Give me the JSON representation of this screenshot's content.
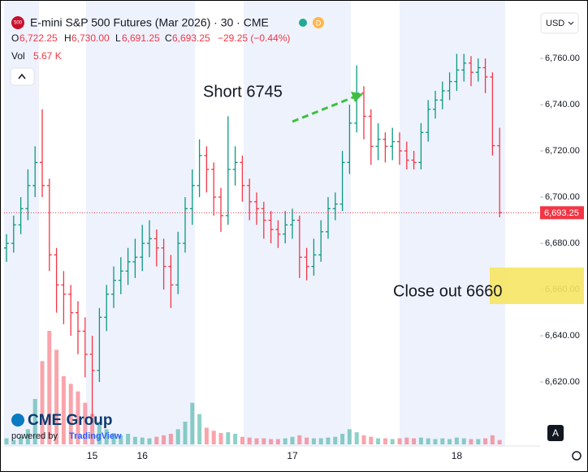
{
  "header": {
    "symbol_badge": "500",
    "title": "E-mini S&P 500 Futures (Mar 2026) · 30 · CME",
    "badge_d": "D",
    "open_label": "O",
    "open": "6,722.25",
    "high_label": "H",
    "high": "6,730.00",
    "low_label": "L",
    "low": "6,691.25",
    "close_label": "C",
    "close": "6,693.25",
    "change": "−29.25 (−0.44%)",
    "vol_label": "Vol",
    "vol_value": "5.67 K",
    "currency": "USD",
    "brand": "CME Group",
    "powered_by": "powered by",
    "powered_name": "TradingView",
    "auto_button": "A"
  },
  "chart_data": {
    "type": "ohlc",
    "up_color": "#089981",
    "down_color": "#f23645",
    "ylim": [
      6592.3,
      6785.3
    ],
    "yticks": [
      {
        "value": 6620,
        "label": "6,620.00"
      },
      {
        "value": 6640,
        "label": "6,640.00"
      },
      {
        "value": 6660,
        "label": "6,660.00"
      },
      {
        "value": 6680,
        "label": "6,680.00"
      },
      {
        "value": 6700,
        "label": "6,700.00"
      },
      {
        "value": 6720,
        "label": "6,720.00"
      },
      {
        "value": 6740,
        "label": "6,740.00"
      },
      {
        "value": 6760,
        "label": "6,760.00"
      }
    ],
    "categories": [
      null,
      null,
      null,
      null,
      null,
      null,
      null,
      null,
      null,
      null,
      null,
      null,
      "15",
      null,
      null,
      null,
      null,
      null,
      null,
      "16",
      null,
      null,
      null,
      null,
      null,
      null,
      null,
      null,
      null,
      null,
      null,
      null,
      null,
      null,
      null,
      null,
      null,
      null,
      null,
      null,
      "17",
      null,
      null,
      null,
      null,
      null,
      null,
      null,
      null,
      null,
      null,
      null,
      null,
      null,
      null,
      null,
      null,
      null,
      null,
      null,
      null,
      null,
      null,
      "18",
      null,
      null,
      null,
      null,
      null,
      null
    ],
    "open": [
      6678,
      6680,
      6688,
      6695,
      6705,
      6715,
      6705,
      6675,
      6662,
      6658,
      6650,
      6642,
      6632,
      6625,
      6648,
      6658,
      6664,
      6668,
      6672,
      6674,
      6680,
      6682,
      6678,
      6670,
      6662,
      6680,
      6695,
      6705,
      6718,
      6712,
      6700,
      6692,
      6712,
      6715,
      6705,
      6698,
      6695,
      6690,
      6686,
      6684,
      6688,
      6690,
      6674,
      6670,
      6675,
      6685,
      6695,
      6697,
      6715,
      6732,
      6745,
      6735,
      6722,
      6725,
      6722,
      6724,
      6720,
      6716,
      6715,
      6728,
      6738,
      6742,
      6746,
      6750,
      6755,
      6758,
      6754,
      6756,
      6752,
      6722.25
    ],
    "high": [
      6684,
      6692,
      6700,
      6712,
      6722,
      6738,
      6708,
      6678,
      6668,
      6662,
      6655,
      6648,
      6640,
      6652,
      6662,
      6670,
      6674,
      6678,
      6682,
      6688,
      6690,
      6686,
      6682,
      6675,
      6685,
      6700,
      6712,
      6725,
      6722,
      6715,
      6704,
      6735,
      6722,
      6718,
      6708,
      6702,
      6698,
      6694,
      6690,
      6694,
      6695,
      6692,
      6678,
      6682,
      6690,
      6700,
      6702,
      6720,
      6740,
      6757,
      6748,
      6738,
      6732,
      6728,
      6730,
      6728,
      6724,
      6720,
      6732,
      6742,
      6746,
      6750,
      6754,
      6762,
      6762,
      6761,
      6760,
      6760,
      6754,
      6730
    ],
    "low": [
      6672,
      6676,
      6684,
      6690,
      6700,
      6700,
      6668,
      6650,
      6645,
      6640,
      6632,
      6622,
      6605,
      6620,
      6642,
      6652,
      6658,
      6662,
      6665,
      6668,
      6674,
      6670,
      6660,
      6652,
      6658,
      6676,
      6688,
      6700,
      6702,
      6692,
      6685,
      6688,
      6705,
      6698,
      6690,
      6688,
      6682,
      6680,
      6678,
      6680,
      6682,
      6665,
      6664,
      6666,
      6672,
      6682,
      6690,
      6694,
      6710,
      6728,
      6725,
      6714,
      6716,
      6715,
      6716,
      6714,
      6712,
      6712,
      6712,
      6724,
      6734,
      6738,
      6742,
      6746,
      6750,
      6748,
      6750,
      6745,
      6718,
      6691.25
    ],
    "close": [
      6680,
      6688,
      6695,
      6705,
      6715,
      6705,
      6675,
      6662,
      6658,
      6650,
      6642,
      6632,
      6625,
      6648,
      6658,
      6664,
      6668,
      6672,
      6674,
      6680,
      6682,
      6678,
      6670,
      6662,
      6680,
      6695,
      6705,
      6718,
      6712,
      6700,
      6692,
      6712,
      6715,
      6705,
      6698,
      6695,
      6690,
      6686,
      6684,
      6688,
      6690,
      6674,
      6670,
      6675,
      6685,
      6695,
      6697,
      6715,
      6732,
      6745,
      6735,
      6722,
      6725,
      6722,
      6724,
      6720,
      6716,
      6715,
      6728,
      6738,
      6742,
      6746,
      6750,
      6755,
      6758,
      6754,
      6756,
      6752,
      6722.25,
      6693.25
    ],
    "volume": [
      8,
      6,
      10,
      20,
      60,
      110,
      150,
      125,
      90,
      80,
      70,
      55,
      40,
      30,
      20,
      15,
      12,
      14,
      10,
      9,
      8,
      10,
      12,
      14,
      20,
      30,
      55,
      40,
      22,
      18,
      15,
      16,
      14,
      10,
      9,
      8,
      8,
      7,
      7,
      8,
      10,
      12,
      9,
      8,
      8,
      9,
      10,
      14,
      20,
      16,
      12,
      10,
      8,
      8,
      7,
      8,
      9,
      8,
      9,
      8,
      7,
      8,
      7,
      9,
      8,
      7,
      7,
      8,
      12,
      5.67
    ],
    "last_price": {
      "value": 6693.25,
      "label": "6,693.25"
    },
    "annotations": [
      {
        "text": "Short 6745"
      },
      {
        "text": "Close out 6660"
      }
    ]
  }
}
